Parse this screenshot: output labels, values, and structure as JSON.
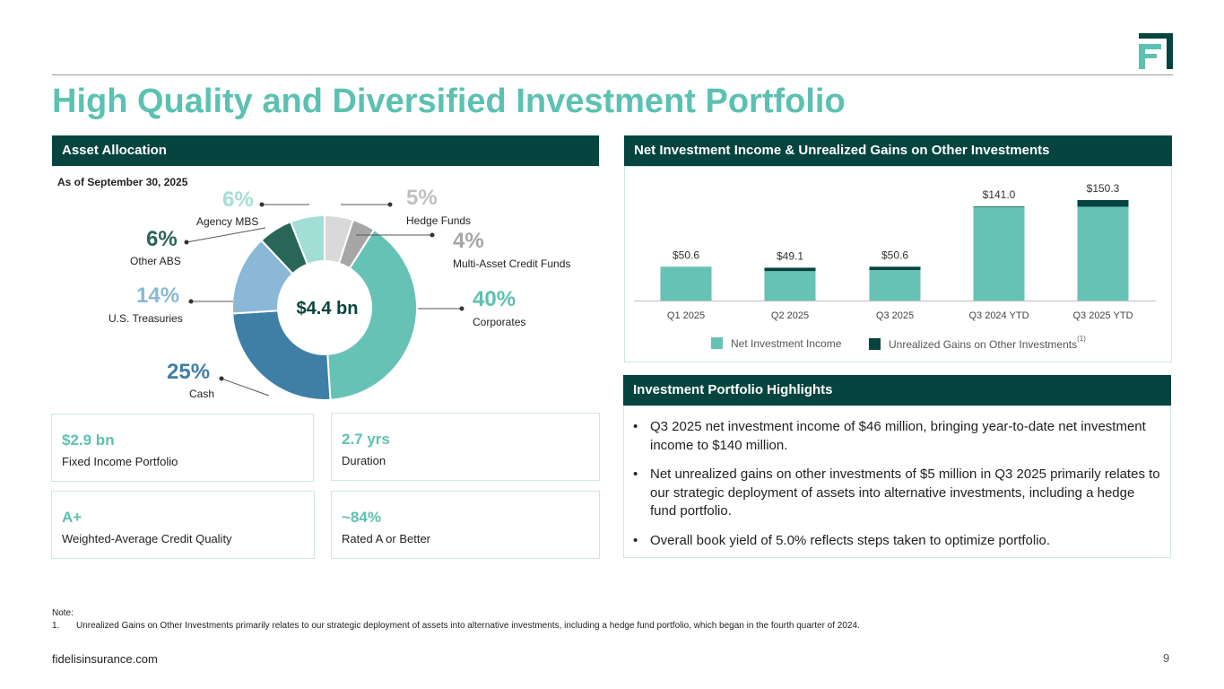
{
  "title": "High Quality and Diversified Investment Portfolio",
  "colors": {
    "teal": "#5cc1b1",
    "dark_teal": "#06443f",
    "rule": "#9a9a9a"
  },
  "asset_allocation": {
    "header": "Asset Allocation",
    "as_of": "As of September 30, 2025",
    "center_label": "$4.4 bn"
  },
  "kpis": [
    {
      "value": "$2.9 bn",
      "label": "Fixed Income Portfolio"
    },
    {
      "value": "2.7 yrs",
      "label": "Duration"
    },
    {
      "value": "A+",
      "label": "Weighted-Average Credit Quality"
    },
    {
      "value": "~84%",
      "label": "Rated A or Better"
    }
  ],
  "nii": {
    "header": "Net Investment Income & Unrealized Gains on Other Investments",
    "legend_note": "(1)"
  },
  "highlights": {
    "header": "Investment Portfolio Highlights",
    "bullets": [
      "Q3 2025 net investment income of $46 million, bringing year-to-date net investment income to $140 million.",
      "Net unrealized gains on other investments of $5 million in Q3 2025 primarily relates to our strategic deployment of assets into alternative investments, including a hedge fund portfolio.",
      "Overall book yield of 5.0% reflects steps taken to optimize portfolio."
    ]
  },
  "footer": {
    "note_title": "Note:",
    "note_number": "1.",
    "note_text": "Unrealized Gains on Other Investments primarily relates to our strategic deployment of assets into alternative investments, including a hedge fund portfolio, which began in the fourth quarter of 2024.",
    "url": "fidelisinsurance.com",
    "page": "9"
  },
  "chart_data": [
    {
      "type": "pie",
      "title": "Asset Allocation",
      "center_label": "$4.4 bn",
      "slices": [
        {
          "label": "Hedge Funds",
          "pct": "5%",
          "value": 5,
          "color": "#d9d9d9",
          "label_color": "#bfbfbf"
        },
        {
          "label": "Multi-Asset Credit Funds",
          "pct": "4%",
          "value": 4,
          "color": "#a6a6a6",
          "label_color": "#a6a6a6"
        },
        {
          "label": "Corporates",
          "pct": "40%",
          "value": 40,
          "color": "#66c2b4",
          "label_color": "#5cc1b1"
        },
        {
          "label": "Cash",
          "pct": "25%",
          "value": 25,
          "color": "#3f7fa6",
          "label_color": "#3f7fa6"
        },
        {
          "label": "U.S. Treasuries",
          "pct": "14%",
          "value": 14,
          "color": "#8ab8d6",
          "label_color": "#8ab8d6"
        },
        {
          "label": "Other ABS",
          "pct": "6%",
          "value": 6,
          "color": "#2a6658",
          "label_color": "#2a6658"
        },
        {
          "label": "Agency MBS",
          "pct": "6%",
          "value": 6,
          "color": "#a3ded6",
          "label_color": "#a3ded6"
        }
      ]
    },
    {
      "type": "bar",
      "stacked": true,
      "title": "Net Investment Income & Unrealized Gains on Other Investments",
      "categories": [
        "Q1 2025",
        "Q2 2025",
        "Q3 2025",
        "Q3 2024 YTD",
        "Q3 2025 YTD"
      ],
      "series": [
        {
          "name": "Net Investment Income",
          "color": "#66c2b4",
          "values": [
            50.6,
            44.0,
            45.6,
            140.0,
            140.3
          ]
        },
        {
          "name": "Unrealized Gains on Other Investments",
          "color": "#06443f",
          "values": [
            0.0,
            5.1,
            5.0,
            1.0,
            10.0
          ]
        }
      ],
      "totals": [
        "$50.6",
        "$49.1",
        "$50.6",
        "$141.0",
        "$150.3"
      ],
      "ylim": [
        0,
        150.3
      ]
    }
  ]
}
